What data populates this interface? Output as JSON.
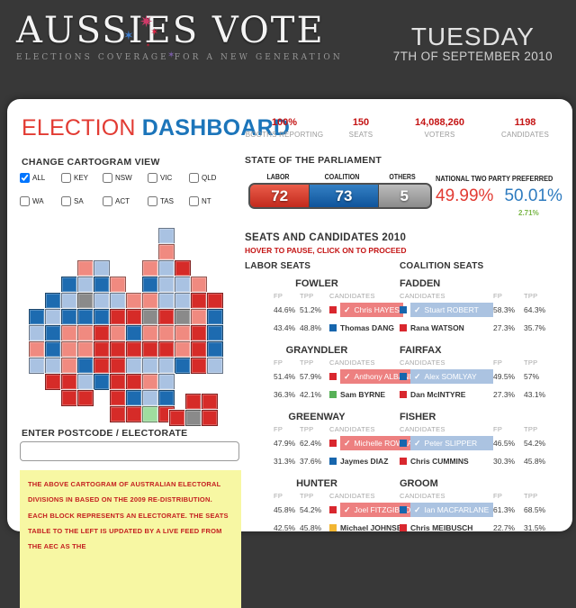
{
  "header": {
    "logo_title": "AUSSIES VOTE",
    "logo_tagline": "ELECTIONS COVERAGE FOR A NEW GENERATION",
    "day": "TUESDAY",
    "date": "7TH OF SEPTEMBER 2010",
    "stars": [
      {
        "name": "pink-star",
        "glyph": "✷"
      },
      {
        "name": "blue-star",
        "glyph": "✶"
      },
      {
        "name": "red-star",
        "glyph": "✶"
      },
      {
        "name": "small-red-star",
        "glyph": "✶"
      },
      {
        "name": "purple-star",
        "glyph": "✶"
      }
    ]
  },
  "dashboard": {
    "title_red": "ELECTION",
    "title_blue": "DASHBOARD",
    "stats": [
      {
        "value": "100%",
        "label": "BOOTHS REPORTING"
      },
      {
        "value": "150",
        "label": "SEATS"
      },
      {
        "value": "14,088,260",
        "label": "VOTERS"
      },
      {
        "value": "1198",
        "label": "CANDIDATES"
      }
    ]
  },
  "cartogram": {
    "title": "CHANGE CARTOGRAM VIEW",
    "checkboxes": [
      {
        "label": "ALL",
        "checked": true
      },
      {
        "label": "KEY",
        "checked": false
      },
      {
        "label": "NSW",
        "checked": false
      },
      {
        "label": "VIC",
        "checked": false
      },
      {
        "label": "QLD",
        "checked": false
      },
      {
        "label": "WA",
        "checked": false
      },
      {
        "label": "SA",
        "checked": false
      },
      {
        "label": "ACT",
        "checked": false
      },
      {
        "label": "TAS",
        "checked": false
      },
      {
        "label": "NT",
        "checked": false
      }
    ],
    "colors": {
      "R": "#d62b28",
      "r": "#f08a80",
      "B": "#1d6bb0",
      "b": "#a9c2e2",
      "G": "#8a8a8a",
      "g": "#9fdd9f"
    },
    "grid": [
      "........b....",
      "........r....",
      "...rb..rbR...",
      "..BbBr.Bbbr..",
      ".BbGbbrrbbRR.",
      "BbBBBRRGRGrB.",
      "bBrrRrBrrrRB.",
      "rBrrRRRRRrRB.",
      "bbrBRRbbbBRb.",
      ".RRbBRRrb....",
      "..RR.RBbB....",
      ".....RRgR...."
    ],
    "tasmania": [
      ".RR",
      "RGR"
    ]
  },
  "parliament": {
    "title": "STATE OF THE PARLIAMENT",
    "segments": [
      {
        "label": "LABOR",
        "value": "72",
        "color": "#d93a2b"
      },
      {
        "label": "COALITION",
        "value": "73",
        "color": "#1b64a7"
      },
      {
        "label": "OTHERS",
        "value": "5",
        "color": "#9b9b9b"
      }
    ],
    "tpp": {
      "title": "NATIONAL TWO PARTY PREFERRED",
      "labor": "49.99%",
      "coalition": "50.01%",
      "swing": "2.71%"
    }
  },
  "seats": {
    "title": "SEATS AND CANDIDATES 2010",
    "subtitle": "HOVER TO PAUSE, CLICK ON TO PROCEED",
    "labor_title": "LABOR SEATS",
    "coalition_title": "COALITION SEATS",
    "fp_label": "FP",
    "tpp_label": "TPP",
    "candidates_label": "CANDIDATES",
    "check_glyph": "✓",
    "labor": [
      {
        "name": "FOWLER",
        "rows": [
          {
            "fp": "44.6%",
            "tpp": "51.2%",
            "party": "labor",
            "candidate": "Chris HAYES",
            "winner": true
          },
          {
            "fp": "43.4%",
            "tpp": "48.8%",
            "party": "liberal",
            "candidate": "Thomas DANG",
            "winner": false
          }
        ]
      },
      {
        "name": "GRAYNDLER",
        "rows": [
          {
            "fp": "51.4%",
            "tpp": "57.9%",
            "party": "labor",
            "candidate": "Anthony ALBANESE",
            "winner": true
          },
          {
            "fp": "36.3%",
            "tpp": "42.1%",
            "party": "green",
            "candidate": "Sam BYRNE",
            "winner": false
          }
        ]
      },
      {
        "name": "GREENWAY",
        "rows": [
          {
            "fp": "47.9%",
            "tpp": "62.4%",
            "party": "labor",
            "candidate": "Michelle ROWLAND",
            "winner": true
          },
          {
            "fp": "31.3%",
            "tpp": "37.6%",
            "party": "liberal",
            "candidate": "Jaymes DIAZ",
            "winner": false
          }
        ]
      },
      {
        "name": "HUNTER",
        "rows": [
          {
            "fp": "45.8%",
            "tpp": "54.2%",
            "party": "labor",
            "candidate": "Joel FITZGIBBON",
            "winner": true
          },
          {
            "fp": "42.5%",
            "tpp": "45.8%",
            "party": "national",
            "candidate": "Michael JOHNSEN",
            "winner": false
          }
        ]
      }
    ],
    "coalition": [
      {
        "name": "FADDEN",
        "rows": [
          {
            "fp": "58.3%",
            "tpp": "64.3%",
            "party": "liberal",
            "candidate": "Stuart ROBERT",
            "winner": true
          },
          {
            "fp": "27.3%",
            "tpp": "35.7%",
            "party": "labor",
            "candidate": "Rana WATSON",
            "winner": false
          }
        ]
      },
      {
        "name": "FAIRFAX",
        "rows": [
          {
            "fp": "49.5%",
            "tpp": "57%",
            "party": "liberal",
            "candidate": "Alex SOMLYAY",
            "winner": true
          },
          {
            "fp": "27.3%",
            "tpp": "43.1%",
            "party": "labor",
            "candidate": "Dan McINTYRE",
            "winner": false
          }
        ]
      },
      {
        "name": "FISHER",
        "rows": [
          {
            "fp": "46.5%",
            "tpp": "54.2%",
            "party": "liberal",
            "candidate": "Peter SLIPPER",
            "winner": true
          },
          {
            "fp": "30.3%",
            "tpp": "45.8%",
            "party": "labor",
            "candidate": "Chris CUMMINS",
            "winner": false
          }
        ]
      },
      {
        "name": "GROOM",
        "rows": [
          {
            "fp": "61.3%",
            "tpp": "68.5%",
            "party": "liberal",
            "candidate": "Ian MACFARLANE",
            "winner": true
          },
          {
            "fp": "22.7%",
            "tpp": "31.5%",
            "party": "labor",
            "candidate": "Chris MEIBUSCH",
            "winner": false
          }
        ]
      }
    ]
  },
  "postcode": {
    "title": "ENTER POSTCODE / ELECTORATE",
    "value": ""
  },
  "note": {
    "text": "THE ABOVE CARTOGRAM OF AUSTRALIAN ELECTORAL DIVISIONS IN BASED ON THE 2009 RE-DISTRIBUTION. EACH BLOCK REPRESENTS AN ELECTORATE. THE SEATS TABLE TO THE LEFT IS UPDATED BY A LIVE FEED FROM THE AEC AS THE"
  }
}
